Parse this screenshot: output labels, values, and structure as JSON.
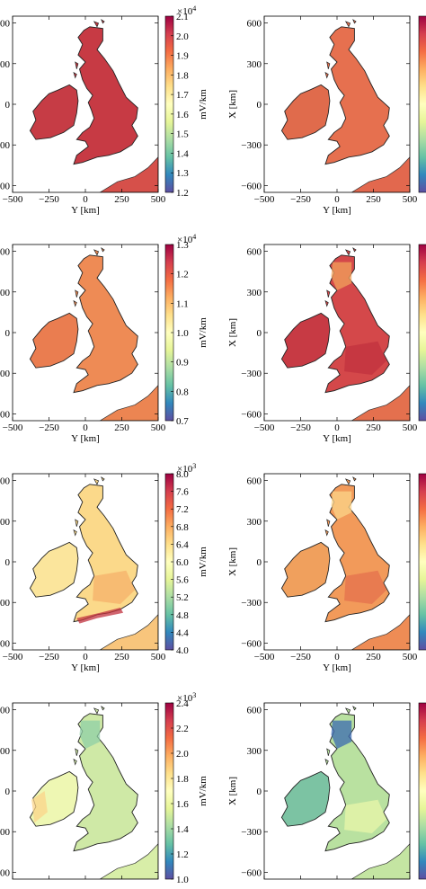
{
  "figure": {
    "rows": [
      {
        "colorbar": {
          "min": 1.2,
          "max": 2.1,
          "ticks": [
            "2.1",
            "2.0",
            "1.9",
            "1.8",
            "1.7",
            "1.6",
            "1.5",
            "1.4",
            "1.3",
            "1.2"
          ],
          "exponent": "4"
        },
        "left": {
          "gb": "#c73a44",
          "ie": "#c63c45",
          "eu": "#d6504a",
          "blobs": []
        },
        "right": {
          "gb": "#e6704f",
          "ie": "#e06b4c",
          "eu": "#e2684e",
          "blobs": []
        }
      },
      {
        "colorbar": {
          "min": 0.7,
          "max": 1.3,
          "ticks": [
            "1.3",
            "1.2",
            "1.1",
            "1.0",
            "0.9",
            "0.8",
            "0.7"
          ],
          "exponent": "4"
        },
        "left": {
          "gb": "#ee8b55",
          "ie": "#ea7d50",
          "eu": "#ec8552",
          "blobs": []
        },
        "right": {
          "gb": "#d4484a",
          "ie": "#c73a44",
          "eu": "#e4704e",
          "blobs": [
            {
              "color": "#c2323f",
              "kind": "se"
            },
            {
              "color": "#f2a15c",
              "kind": "north"
            }
          ]
        }
      },
      {
        "colorbar": {
          "min": 4.0,
          "max": 8.0,
          "ticks": [
            "8.0",
            "7.6",
            "7.2",
            "6.8",
            "6.4",
            "6.0",
            "5.6",
            "5.2",
            "4.8",
            "4.4",
            "4.0"
          ],
          "exponent": "3"
        },
        "left": {
          "gb": "#fbd98a",
          "ie": "#fbe59c",
          "eu": "#f8c57c",
          "blobs": [
            {
              "color": "#f5b06a",
              "kind": "se"
            },
            {
              "color": "#c2323f",
              "kind": "south"
            }
          ]
        },
        "right": {
          "gb": "#f29a5a",
          "ie": "#f0a05d",
          "eu": "#ee8c55",
          "blobs": [
            {
              "color": "#e4704e",
              "kind": "se"
            },
            {
              "color": "#fbd48a",
              "kind": "north"
            }
          ]
        }
      },
      {
        "colorbar": {
          "min": 1.0,
          "max": 2.4,
          "ticks": [
            "2.4",
            "2.2",
            "2.0",
            "1.8",
            "1.6",
            "1.4",
            "1.2",
            "1.0"
          ],
          "exponent": "3"
        },
        "left": {
          "gb": "#cfe9a6",
          "ie": "#eef7b3",
          "eu": "#d8eea8",
          "blobs": [
            {
              "color": "#8fcfa5",
              "kind": "north"
            },
            {
              "color": "#fbd48a",
              "kind": "ieWest"
            }
          ]
        },
        "right": {
          "gb": "#b9e1a0",
          "ie": "#7cc3a3",
          "eu": "#c4e5a2",
          "blobs": [
            {
              "color": "#3b6ab0",
              "kind": "north"
            },
            {
              "color": "#e9f5aa",
              "kind": "se"
            }
          ]
        }
      }
    ],
    "ylabel": "X [km]",
    "xlabel": "Y [km]",
    "cbar_label": "mV/km",
    "x_ticks": [
      "−500",
      "−250",
      "0",
      "250",
      "500"
    ],
    "y_ticks": [
      "600",
      "300",
      "0",
      "−300",
      "−600"
    ]
  }
}
